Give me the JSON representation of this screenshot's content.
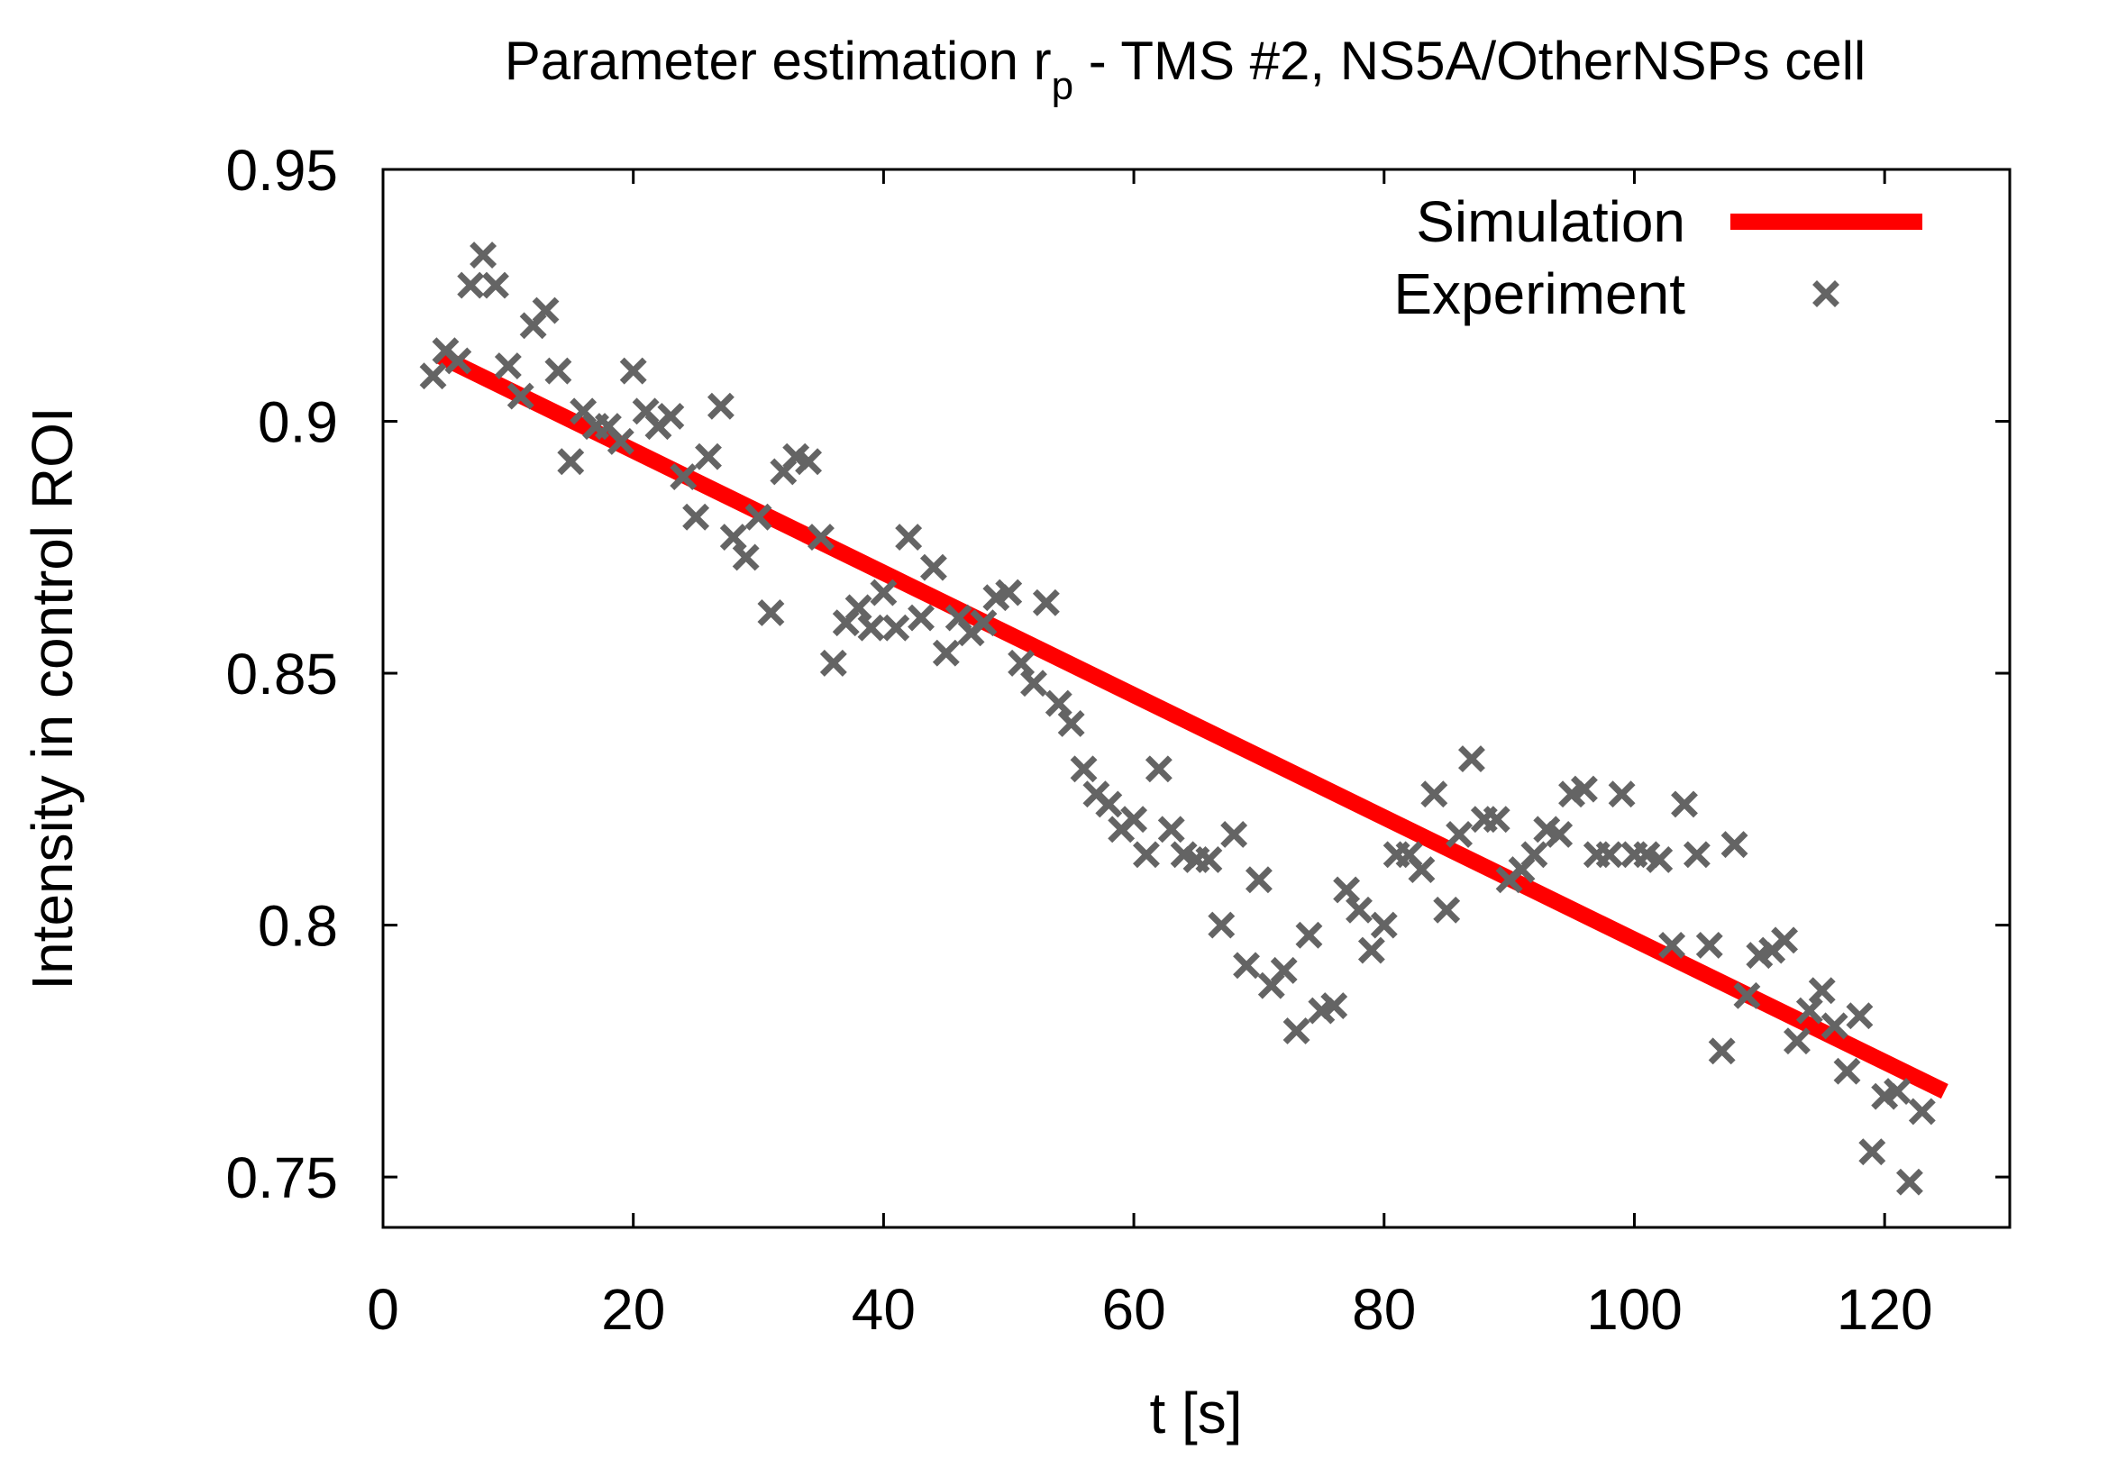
{
  "chart_data": {
    "type": "scatter",
    "title": "Parameter estimation r",
    "title_subscript": "p",
    "title_suffix": " - TMS #2, NS5A/OtherNSPs cell",
    "xlabel": "t [s]",
    "ylabel": "Intensity in control ROI",
    "xlim": [
      0,
      130
    ],
    "ylim": [
      0.74,
      0.95
    ],
    "xticks": [
      0,
      20,
      40,
      60,
      80,
      100,
      120
    ],
    "xtick_labels": [
      "0",
      "20",
      "40",
      "60",
      "80",
      "100",
      "120"
    ],
    "yticks": [
      0.75,
      0.8,
      0.85,
      0.9,
      0.95
    ],
    "ytick_labels": [
      "0.75",
      "0.8",
      "0.85",
      "0.9",
      "0.95"
    ],
    "legend_position": "top-right",
    "series": [
      {
        "name": "Simulation",
        "kind": "line",
        "color": "#ff0000",
        "x": [
          4.5,
          124.8
        ],
        "y": [
          0.913,
          0.767
        ]
      },
      {
        "name": "Experiment",
        "kind": "points",
        "marker": "x",
        "color": "#646464",
        "x": [
          4,
          5,
          6,
          7,
          8,
          9,
          10,
          11,
          12,
          13,
          14,
          15,
          16,
          17,
          18,
          19,
          20,
          21,
          22,
          23,
          24,
          25,
          26,
          27,
          28,
          29,
          30,
          31,
          32,
          33,
          34,
          35,
          36,
          37,
          38,
          39,
          40,
          41,
          42,
          43,
          44,
          45,
          46,
          47,
          48,
          49,
          50,
          51,
          52,
          53,
          54,
          55,
          56,
          57,
          58,
          59,
          60,
          61,
          62,
          63,
          64,
          65,
          66,
          67,
          68,
          69,
          70,
          71,
          72,
          73,
          74,
          75,
          76,
          77,
          78,
          79,
          80,
          81,
          82,
          83,
          84,
          85,
          86,
          87,
          88,
          89,
          90,
          91,
          92,
          93,
          94,
          95,
          96,
          97,
          98,
          99,
          100,
          101,
          102,
          103,
          104,
          105,
          106,
          107,
          108,
          109,
          110,
          111,
          112,
          113,
          114,
          115,
          116,
          117,
          118,
          119,
          120,
          121,
          122,
          123
        ],
        "y": [
          0.909,
          0.914,
          0.912,
          0.927,
          0.933,
          0.927,
          0.911,
          0.905,
          0.919,
          0.922,
          0.91,
          0.892,
          0.902,
          0.899,
          0.899,
          0.896,
          0.91,
          0.902,
          0.899,
          0.901,
          0.889,
          0.881,
          0.893,
          0.903,
          0.877,
          0.873,
          0.881,
          0.862,
          0.89,
          0.893,
          0.892,
          0.877,
          0.852,
          0.86,
          0.863,
          0.859,
          0.866,
          0.859,
          0.877,
          0.861,
          0.871,
          0.854,
          0.861,
          0.858,
          0.86,
          0.865,
          0.866,
          0.852,
          0.848,
          0.864,
          0.844,
          0.84,
          0.831,
          0.826,
          0.824,
          0.819,
          0.821,
          0.814,
          0.831,
          0.819,
          0.814,
          0.813,
          0.813,
          0.8,
          0.818,
          0.792,
          0.809,
          0.788,
          0.791,
          0.779,
          0.798,
          0.783,
          0.784,
          0.807,
          0.803,
          0.795,
          0.8,
          0.814,
          0.814,
          0.811,
          0.826,
          0.803,
          0.818,
          0.833,
          0.821,
          0.821,
          0.809,
          0.811,
          0.814,
          0.819,
          0.818,
          0.826,
          0.827,
          0.814,
          0.814,
          0.826,
          0.814,
          0.814,
          0.813,
          0.796,
          0.824,
          0.814,
          0.796,
          0.775,
          0.816,
          0.786,
          0.794,
          0.795,
          0.797,
          0.777,
          0.783,
          0.787,
          0.78,
          0.771,
          0.782,
          0.755,
          0.766,
          0.767,
          0.749,
          0.763
        ]
      }
    ]
  }
}
